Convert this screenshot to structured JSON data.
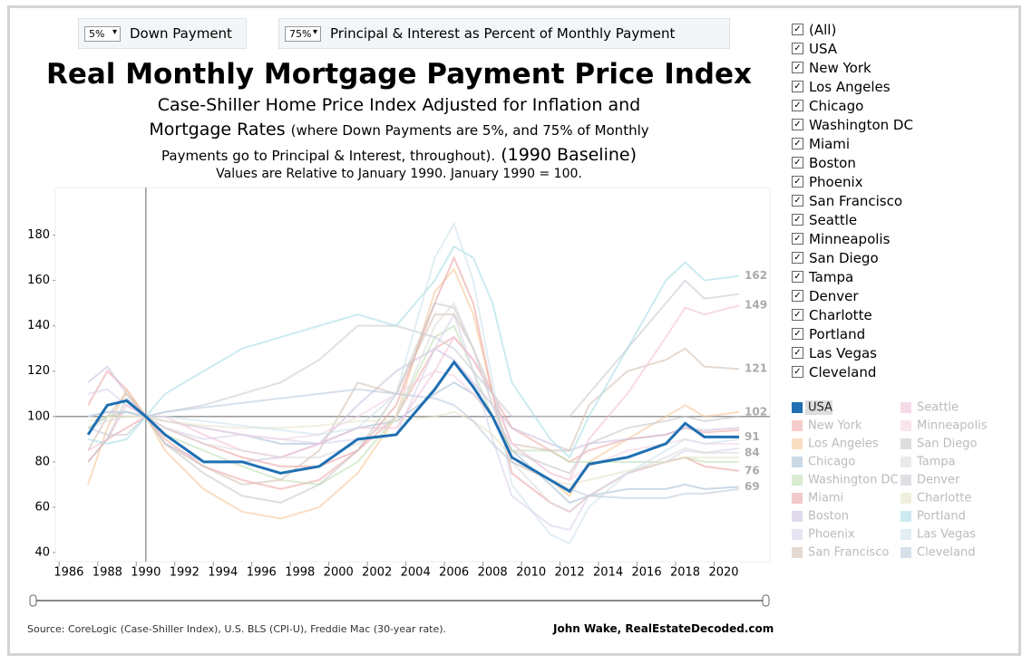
{
  "controls": {
    "down_payment": {
      "value": "5%",
      "label": "Down Payment"
    },
    "pi_percent": {
      "value": "75%",
      "label": "Principal & Interest as Percent of Monthly Payment"
    }
  },
  "filter": {
    "items": [
      "(All)",
      "USA",
      "New York",
      "Los Angeles",
      "Chicago",
      "Washington DC",
      "Miami",
      "Boston",
      "Phoenix",
      "San Francisco",
      "Seattle",
      "Minneapolis",
      "San Diego",
      "Tampa",
      "Denver",
      "Charlotte",
      "Portland",
      "Las Vegas",
      "Cleveland"
    ]
  },
  "footer": {
    "source": "Source: CoreLogic (Case-Shiller Index), U.S. BLS (CPI-U), Freddie Mac (30-year rate).",
    "credit": "John Wake, RealEstateDecoded.com"
  },
  "chart_data": {
    "type": "line",
    "title": "Real Monthly Mortgage Payment Price Index",
    "subtitle_parts": [
      "Case-Shiller Home Price Index Adjusted for Inflation and",
      "Mortgage Rates",
      "(where Down Payments are 5%, and 75% of Monthly",
      "Payments go to Principal & Interest, throughout).",
      "(1990 Baseline)"
    ],
    "note": "Values are Relative to January 1990. January 1990 = 100.",
    "x": [
      1987,
      1988,
      1989,
      1990,
      1991,
      1993,
      1995,
      1997,
      1999,
      2001,
      2003,
      2005,
      2006,
      2007,
      2008,
      2009,
      2011,
      2012,
      2013,
      2015,
      2017,
      2018,
      2019,
      2020.8
    ],
    "xlim": [
      1985.3,
      2022.4
    ],
    "xticks": [
      1986,
      1988,
      1990,
      1992,
      1994,
      1996,
      1998,
      2000,
      2002,
      2004,
      2006,
      2008,
      2010,
      2012,
      2014,
      2016,
      2018,
      2020
    ],
    "ylim": [
      36,
      201
    ],
    "yticks": [
      40,
      60,
      80,
      100,
      120,
      140,
      160,
      180
    ],
    "reference_x": 1990,
    "reference_y": 100,
    "grid": false,
    "series": [
      {
        "name": "USA",
        "color": "#1f6fb2",
        "highlight": true,
        "label_end": true,
        "values": [
          92,
          105,
          107,
          100,
          92,
          80,
          80,
          75,
          78,
          90,
          92,
          112,
          124,
          113,
          100,
          82,
          72,
          67,
          79,
          82,
          88,
          97,
          91,
          91
        ]
      },
      {
        "name": "New York",
        "color": "#f0a8a8",
        "values": [
          105,
          120,
          112,
          100,
          90,
          78,
          72,
          68,
          72,
          85,
          100,
          130,
          135,
          125,
          110,
          95,
          85,
          80,
          85,
          90,
          92,
          95,
          93,
          94
        ]
      },
      {
        "name": "Los Angeles",
        "color": "#f6c89a",
        "label_end": true,
        "values": [
          70,
          95,
          112,
          100,
          85,
          68,
          58,
          55,
          60,
          75,
          100,
          155,
          165,
          145,
          110,
          80,
          72,
          65,
          80,
          90,
          100,
          105,
          100,
          102
        ]
      },
      {
        "name": "Chicago",
        "color": "#a9bfd6",
        "label_end": true,
        "values": [
          95,
          100,
          102,
          100,
          98,
          95,
          92,
          88,
          88,
          95,
          98,
          110,
          115,
          110,
          100,
          85,
          70,
          62,
          65,
          68,
          68,
          70,
          68,
          69
        ]
      },
      {
        "name": "Washington DC",
        "color": "#bfe0b4",
        "values": [
          95,
          100,
          102,
          100,
          92,
          85,
          78,
          72,
          70,
          80,
          100,
          135,
          140,
          120,
          100,
          85,
          85,
          80,
          80,
          80,
          80,
          82,
          80,
          80
        ]
      },
      {
        "name": "Miami",
        "color": "#eba3a3",
        "label_end": true,
        "values": [
          80,
          90,
          95,
          100,
          95,
          88,
          82,
          78,
          78,
          85,
          105,
          150,
          170,
          150,
          110,
          75,
          62,
          58,
          65,
          75,
          80,
          82,
          78,
          76
        ]
      },
      {
        "name": "Boston",
        "color": "#cdbfe0",
        "values": [
          115,
          122,
          110,
          100,
          88,
          80,
          80,
          82,
          88,
          105,
          120,
          130,
          125,
          115,
          105,
          95,
          88,
          85,
          88,
          90,
          92,
          95,
          94,
          95
        ]
      },
      {
        "name": "Phoenix",
        "color": "#d9d2ea",
        "values": [
          110,
          112,
          105,
          100,
          95,
          90,
          92,
          90,
          88,
          90,
          92,
          130,
          145,
          120,
          90,
          65,
          52,
          50,
          65,
          75,
          80,
          85,
          84,
          86
        ]
      },
      {
        "name": "San Francisco",
        "color": "#d3c2b4",
        "label_end": true,
        "values": [
          85,
          100,
          110,
          100,
          88,
          78,
          70,
          72,
          85,
          115,
          110,
          145,
          145,
          130,
          110,
          88,
          85,
          85,
          105,
          120,
          125,
          130,
          122,
          121
        ]
      },
      {
        "name": "Seattle",
        "color": "#f1c2d8",
        "label_end": true,
        "values": [
          85,
          90,
          105,
          100,
          100,
          92,
          85,
          82,
          88,
          95,
          95,
          120,
          135,
          125,
          110,
          88,
          75,
          72,
          90,
          110,
          135,
          148,
          145,
          149
        ]
      },
      {
        "name": "Minneapolis",
        "color": "#f3d3e2",
        "values": [
          100,
          102,
          100,
          100,
          98,
          95,
          92,
          90,
          92,
          100,
          110,
          120,
          118,
          110,
          100,
          88,
          75,
          72,
          78,
          85,
          88,
          90,
          88,
          88
        ]
      },
      {
        "name": "San Diego",
        "color": "#c8c8c8",
        "values": [
          80,
          90,
          108,
          100,
          88,
          75,
          65,
          62,
          70,
          85,
          110,
          150,
          148,
          130,
          105,
          85,
          78,
          75,
          88,
          95,
          98,
          100,
          98,
          100
        ]
      },
      {
        "name": "Tampa",
        "color": "#dcdcdc",
        "label_end": true,
        "values": [
          95,
          98,
          100,
          100,
          95,
          88,
          85,
          82,
          82,
          88,
          100,
          140,
          150,
          130,
          105,
          80,
          62,
          58,
          65,
          75,
          82,
          86,
          84,
          84
        ]
      },
      {
        "name": "Denver",
        "color": "#c9ccd6",
        "values": [
          95,
          92,
          92,
          100,
          102,
          105,
          110,
          115,
          125,
          140,
          140,
          135,
          130,
          120,
          110,
          100,
          100,
          100,
          110,
          130,
          150,
          160,
          152,
          154
        ]
      },
      {
        "name": "Charlotte",
        "color": "#e6e4c9",
        "values": [
          98,
          100,
          100,
          100,
          98,
          96,
          95,
          95,
          96,
          98,
          98,
          100,
          102,
          98,
          92,
          82,
          72,
          70,
          72,
          76,
          80,
          82,
          82,
          82
        ]
      },
      {
        "name": "Portland",
        "color": "#a8dde6",
        "label_end": true,
        "values": [
          90,
          88,
          90,
          100,
          110,
          120,
          130,
          135,
          140,
          145,
          140,
          160,
          175,
          170,
          150,
          115,
          90,
          82,
          100,
          130,
          160,
          168,
          160,
          162
        ]
      },
      {
        "name": "Las Vegas",
        "color": "#cfe3ec",
        "values": [
          100,
          102,
          102,
          100,
          100,
          98,
          96,
          94,
          92,
          95,
          110,
          170,
          185,
          160,
          115,
          70,
          48,
          44,
          60,
          75,
          85,
          90,
          88,
          90
        ]
      },
      {
        "name": "Cleveland",
        "color": "#bccbdc",
        "values": [
          100,
          102,
          102,
          100,
          102,
          104,
          106,
          108,
          110,
          112,
          110,
          108,
          105,
          98,
          88,
          80,
          72,
          68,
          65,
          64,
          64,
          66,
          66,
          68
        ]
      }
    ]
  }
}
